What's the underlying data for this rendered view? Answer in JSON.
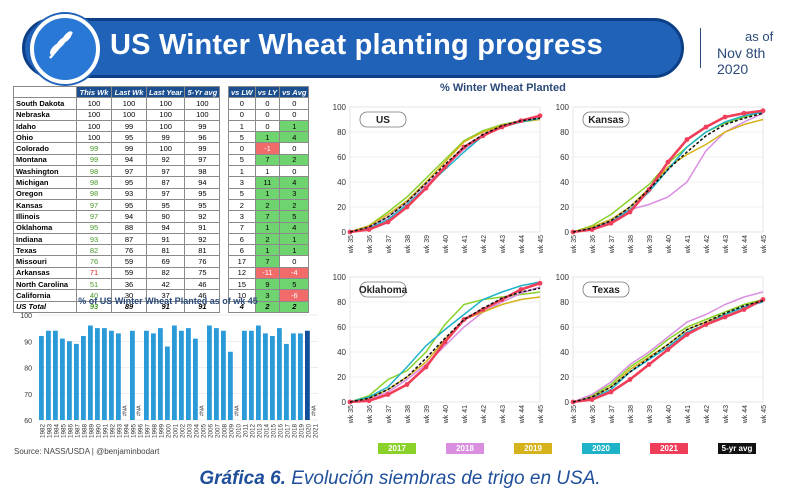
{
  "header": {
    "title": "US Winter Wheat planting progress",
    "as_of_line1": "as of",
    "as_of_line2": "Nov 8th 2020"
  },
  "table": {
    "headers": [
      "",
      "This Wk",
      "Last Wk",
      "Last Year",
      "5-Yr avg"
    ],
    "headers2": [
      "vs LW",
      "vs LY",
      "vs Avg"
    ],
    "rows": [
      {
        "state": "South Dakota",
        "tw": "100",
        "lw": "100",
        "ly": "100",
        "avg": "100",
        "vlw": "0",
        "vly": "0",
        "vavg": "0",
        "c": [
          "",
          "",
          ""
        ]
      },
      {
        "state": "Nebraska",
        "tw": "100",
        "lw": "100",
        "ly": "100",
        "avg": "100",
        "vlw": "0",
        "vly": "0",
        "vavg": "0",
        "c": [
          "",
          "",
          ""
        ]
      },
      {
        "state": "Idaho",
        "tw": "100",
        "lw": "99",
        "ly": "100",
        "avg": "99",
        "vlw": "1",
        "vly": "0",
        "vavg": "1",
        "c": [
          "",
          "",
          "g"
        ]
      },
      {
        "state": "Ohio",
        "tw": "100",
        "lw": "95",
        "ly": "99",
        "avg": "96",
        "vlw": "5",
        "vly": "1",
        "vavg": "4",
        "c": [
          "",
          "g",
          "g"
        ]
      },
      {
        "state": "Colorado",
        "tw": "99",
        "lw": "99",
        "ly": "100",
        "avg": "99",
        "vlw": "0",
        "vly": "-1",
        "vavg": "0",
        "c": [
          "",
          "r",
          ""
        ]
      },
      {
        "state": "Montana",
        "tw": "99",
        "lw": "94",
        "ly": "92",
        "avg": "97",
        "vlw": "5",
        "vly": "7",
        "vavg": "2",
        "c": [
          "",
          "g",
          "g"
        ]
      },
      {
        "state": "Washington",
        "tw": "98",
        "lw": "97",
        "ly": "97",
        "avg": "98",
        "vlw": "1",
        "vly": "1",
        "vavg": "0",
        "c": [
          "",
          "",
          ""
        ]
      },
      {
        "state": "Michigan",
        "tw": "98",
        "lw": "95",
        "ly": "87",
        "avg": "94",
        "vlw": "3",
        "vly": "11",
        "vavg": "4",
        "c": [
          "",
          "g",
          "g"
        ]
      },
      {
        "state": "Oregon",
        "tw": "98",
        "lw": "93",
        "ly": "97",
        "avg": "95",
        "vlw": "5",
        "vly": "1",
        "vavg": "3",
        "c": [
          "",
          "g",
          "g"
        ]
      },
      {
        "state": "Kansas",
        "tw": "97",
        "lw": "95",
        "ly": "95",
        "avg": "95",
        "vlw": "2",
        "vly": "2",
        "vavg": "2",
        "c": [
          "",
          "g",
          "g"
        ]
      },
      {
        "state": "Illinois",
        "tw": "97",
        "lw": "94",
        "ly": "90",
        "avg": "92",
        "vlw": "3",
        "vly": "7",
        "vavg": "5",
        "c": [
          "",
          "g",
          "g"
        ]
      },
      {
        "state": "Oklahoma",
        "tw": "95",
        "lw": "88",
        "ly": "94",
        "avg": "91",
        "vlw": "7",
        "vly": "1",
        "vavg": "4",
        "c": [
          "",
          "g",
          "g"
        ]
      },
      {
        "state": "Indiana",
        "tw": "93",
        "lw": "87",
        "ly": "91",
        "avg": "92",
        "vlw": "6",
        "vly": "2",
        "vavg": "1",
        "c": [
          "",
          "g",
          "g"
        ]
      },
      {
        "state": "Texas",
        "tw": "82",
        "lw": "76",
        "ly": "81",
        "avg": "81",
        "vlw": "6",
        "vly": "1",
        "vavg": "1",
        "c": [
          "",
          "g",
          "g"
        ]
      },
      {
        "state": "Missouri",
        "tw": "76",
        "lw": "59",
        "ly": "69",
        "avg": "76",
        "vlw": "17",
        "vly": "7",
        "vavg": "0",
        "c": [
          "",
          "g",
          ""
        ]
      },
      {
        "state": "Arkansas",
        "tw": "71",
        "lw": "59",
        "ly": "82",
        "avg": "75",
        "vlw": "12",
        "vly": "-11",
        "vavg": "-4",
        "c": [
          "",
          "r",
          "r"
        ]
      },
      {
        "state": "North Carolina",
        "tw": "51",
        "lw": "36",
        "ly": "42",
        "avg": "46",
        "vlw": "15",
        "vly": "9",
        "vavg": "5",
        "c": [
          "",
          "g",
          "g"
        ]
      },
      {
        "state": "California",
        "tw": "40",
        "lw": "30",
        "ly": "37",
        "avg": "46",
        "vlw": "10",
        "vly": "3",
        "vavg": "-6",
        "c": [
          "",
          "g",
          "r"
        ]
      },
      {
        "state": "US Total",
        "tw": "93",
        "lw": "89",
        "ly": "91",
        "avg": "91",
        "vlw": "4",
        "vly": "2",
        "vavg": "2",
        "c": [
          "",
          "g",
          "g"
        ]
      }
    ]
  },
  "chart_data": [
    {
      "type": "bar",
      "title": "% of US Winter Wheat Planted as of wk 45",
      "ylim": [
        60,
        100
      ],
      "categories": [
        "1982",
        "1983",
        "1984",
        "1985",
        "1986",
        "1987",
        "1988",
        "1989",
        "1990",
        "1991",
        "1992",
        "1993",
        "1994",
        "1995",
        "1996",
        "1997",
        "1998",
        "1999",
        "2000",
        "2001",
        "2002",
        "2003",
        "2004",
        "2005",
        "2006",
        "2007",
        "2008",
        "2009",
        "2010",
        "2011",
        "2012",
        "2013",
        "2014",
        "2015",
        "2016",
        "2017",
        "2018",
        "2019",
        "2020",
        "2021"
      ],
      "values": [
        92,
        94,
        94,
        91,
        90,
        89,
        92,
        96,
        95,
        95,
        94,
        93,
        null,
        94,
        null,
        94,
        93,
        95,
        88,
        96,
        94,
        95,
        91,
        null,
        96,
        95,
        94,
        86,
        null,
        94,
        94,
        96,
        93,
        92,
        95,
        89,
        93,
        93,
        94,
        null
      ],
      "na_label": "#NA"
    },
    {
      "type": "line",
      "title": "US",
      "x": [
        "wk 35",
        "wk 36",
        "wk 37",
        "wk 38",
        "wk 39",
        "wk 40",
        "wk 41",
        "wk 42",
        "wk 43",
        "wk 44",
        "wk 45"
      ],
      "ylim": [
        0,
        100
      ],
      "series": [
        {
          "name": "2017",
          "values": [
            0,
            5,
            16,
            28,
            43,
            58,
            73,
            81,
            86,
            89,
            92
          ]
        },
        {
          "name": "2018",
          "values": [
            0,
            4,
            12,
            24,
            38,
            52,
            66,
            78,
            85,
            89,
            92
          ]
        },
        {
          "name": "2019",
          "values": [
            0,
            5,
            14,
            25,
            40,
            56,
            72,
            80,
            85,
            88,
            90
          ]
        },
        {
          "name": "2020",
          "values": [
            0,
            3,
            10,
            22,
            36,
            50,
            64,
            77,
            84,
            88,
            91
          ]
        },
        {
          "name": "2021",
          "values": [
            0,
            2,
            8,
            20,
            35,
            52,
            68,
            77,
            84,
            89,
            93
          ]
        },
        {
          "name": "5-yr avg",
          "values": [
            0,
            4,
            12,
            24,
            39,
            54,
            68,
            78,
            85,
            89,
            91
          ]
        }
      ]
    },
    {
      "type": "line",
      "title": "Kansas",
      "x": [
        "wk 35",
        "wk 36",
        "wk 37",
        "wk 38",
        "wk 39",
        "wk 40",
        "wk 41",
        "wk 42",
        "wk 43",
        "wk 44",
        "wk 45"
      ],
      "ylim": [
        0,
        100
      ],
      "series": [
        {
          "name": "2017",
          "values": [
            0,
            5,
            14,
            26,
            38,
            55,
            68,
            80,
            87,
            92,
            96
          ]
        },
        {
          "name": "2018",
          "values": [
            0,
            3,
            10,
            18,
            22,
            28,
            40,
            65,
            80,
            88,
            95
          ]
        },
        {
          "name": "2019",
          "values": [
            0,
            4,
            10,
            20,
            35,
            52,
            62,
            70,
            80,
            86,
            90
          ]
        },
        {
          "name": "2020",
          "values": [
            0,
            3,
            8,
            18,
            32,
            50,
            68,
            80,
            88,
            93,
            96
          ]
        },
        {
          "name": "2021",
          "values": [
            0,
            2,
            7,
            16,
            34,
            56,
            74,
            84,
            92,
            95,
            97
          ]
        },
        {
          "name": "5-yr avg",
          "values": [
            0,
            3,
            9,
            20,
            34,
            50,
            64,
            77,
            86,
            91,
            95
          ]
        }
      ]
    },
    {
      "type": "line",
      "title": "Oklahoma",
      "x": [
        "wk 35",
        "wk 36",
        "wk 37",
        "wk 38",
        "wk 39",
        "wk 40",
        "wk 41",
        "wk 42",
        "wk 43",
        "wk 44",
        "wk 45"
      ],
      "ylim": [
        0,
        100
      ],
      "series": [
        {
          "name": "2017",
          "values": [
            0,
            5,
            18,
            25,
            40,
            62,
            78,
            82,
            84,
            86,
            88
          ]
        },
        {
          "name": "2018",
          "values": [
            0,
            2,
            8,
            18,
            30,
            45,
            60,
            72,
            80,
            87,
            92
          ]
        },
        {
          "name": "2019",
          "values": [
            0,
            3,
            10,
            20,
            32,
            50,
            66,
            72,
            78,
            82,
            84
          ]
        },
        {
          "name": "2020",
          "values": [
            0,
            4,
            12,
            28,
            45,
            58,
            70,
            82,
            88,
            93,
            96
          ]
        },
        {
          "name": "2021",
          "values": [
            0,
            1,
            6,
            14,
            28,
            48,
            66,
            74,
            82,
            90,
            95
          ]
        },
        {
          "name": "5-yr avg",
          "values": [
            0,
            3,
            10,
            20,
            35,
            51,
            66,
            75,
            83,
            88,
            91
          ]
        }
      ]
    },
    {
      "type": "line",
      "title": "Texas",
      "x": [
        "wk 35",
        "wk 36",
        "wk 37",
        "wk 38",
        "wk 39",
        "wk 40",
        "wk 41",
        "wk 42",
        "wk 43",
        "wk 44",
        "wk 45"
      ],
      "ylim": [
        0,
        100
      ],
      "series": [
        {
          "name": "2017",
          "values": [
            0,
            5,
            14,
            28,
            38,
            50,
            60,
            66,
            72,
            78,
            82
          ]
        },
        {
          "name": "2018",
          "values": [
            0,
            6,
            16,
            30,
            40,
            52,
            64,
            70,
            78,
            84,
            88
          ]
        },
        {
          "name": "2019",
          "values": [
            0,
            4,
            12,
            26,
            36,
            46,
            58,
            64,
            70,
            76,
            82
          ]
        },
        {
          "name": "2020",
          "values": [
            0,
            3,
            10,
            24,
            34,
            44,
            56,
            62,
            70,
            76,
            80
          ]
        },
        {
          "name": "2021",
          "values": [
            0,
            2,
            8,
            18,
            30,
            42,
            54,
            62,
            68,
            74,
            82
          ]
        },
        {
          "name": "5-yr avg",
          "values": [
            0,
            4,
            12,
            24,
            35,
            46,
            58,
            64,
            71,
            77,
            81
          ]
        }
      ]
    }
  ],
  "line_charts_title": "% Winter Wheat Planted",
  "legend": [
    {
      "label": "2017",
      "color": "#8ad12a"
    },
    {
      "label": "2018",
      "color": "#d98ee0"
    },
    {
      "label": "2019",
      "color": "#d6b21c"
    },
    {
      "label": "2020",
      "color": "#1fb3c9"
    },
    {
      "label": "2021",
      "color": "#ef3e5a"
    },
    {
      "label": "5-yr avg",
      "color": "#111111"
    }
  ],
  "source": "Source: NASS/USDA | @benjaminbodart",
  "caption": {
    "bold": "Gráfica 6.",
    "rest": " Evolución siembras de trigo en USA."
  }
}
